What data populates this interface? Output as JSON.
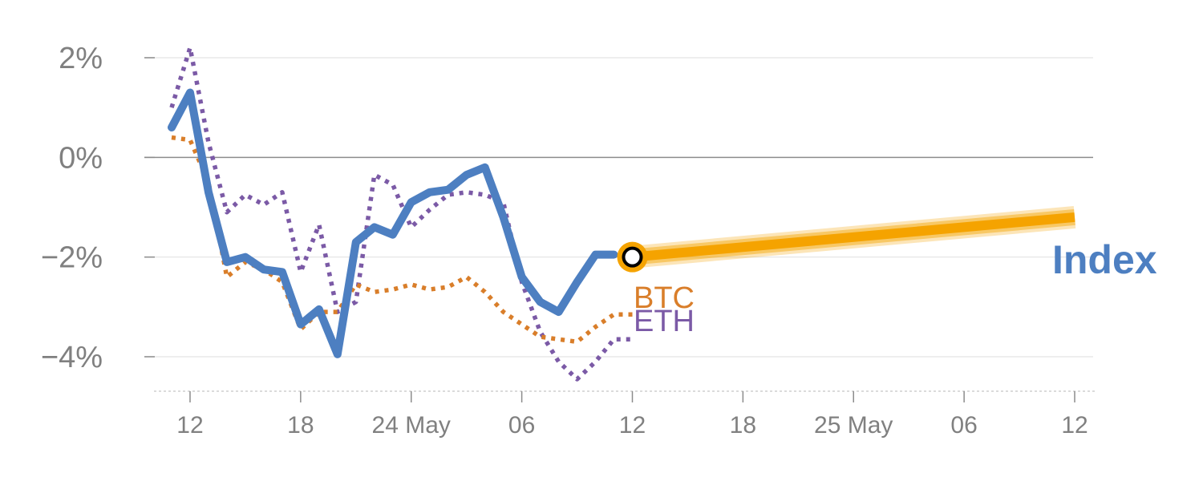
{
  "chart_data": {
    "type": "line",
    "y_unit": "%",
    "ylim": [
      -4.7,
      2.4
    ],
    "y_ticks": [
      {
        "value": 2,
        "label": "2%"
      },
      {
        "value": 0,
        "label": "0%"
      },
      {
        "value": -2,
        "label": "−2%"
      },
      {
        "value": -4,
        "label": "−4%"
      }
    ],
    "x_ticks": [
      {
        "x": 1,
        "label": "12"
      },
      {
        "x": 7,
        "label": "18"
      },
      {
        "x": 13,
        "label": "24 May"
      },
      {
        "x": 19,
        "label": "06"
      },
      {
        "x": 25,
        "label": "12"
      },
      {
        "x": 31,
        "label": "18"
      },
      {
        "x": 37,
        "label": "25 May"
      },
      {
        "x": 43,
        "label": "06"
      },
      {
        "x": 49,
        "label": "12"
      }
    ],
    "grid": true,
    "series": [
      {
        "name": "ETH",
        "color": "#7b5aa6",
        "style": "dotted",
        "x": [
          0,
          1,
          2,
          3,
          4,
          5,
          6,
          7,
          8,
          9,
          10,
          11,
          12,
          13,
          14,
          15,
          16,
          17,
          18,
          19,
          20,
          21,
          22,
          23,
          24,
          25
        ],
        "y": [
          1.0,
          2.2,
          0.3,
          -1.1,
          -0.75,
          -0.95,
          -0.7,
          -2.3,
          -1.35,
          -3.1,
          -2.9,
          -0.35,
          -0.55,
          -1.4,
          -1.05,
          -0.75,
          -0.7,
          -0.75,
          -0.9,
          -2.5,
          -3.5,
          -4.1,
          -4.45,
          -4.1,
          -3.65,
          -3.65
        ]
      },
      {
        "name": "BTC",
        "color": "#d97e2a",
        "style": "dotted",
        "x": [
          0,
          1,
          2,
          3,
          4,
          5,
          6,
          7,
          8,
          9,
          10,
          11,
          12,
          13,
          14,
          15,
          16,
          17,
          18,
          19,
          20,
          21,
          22,
          23,
          24,
          25
        ],
        "y": [
          0.4,
          0.35,
          -0.5,
          -2.4,
          -2.1,
          -2.25,
          -2.5,
          -3.45,
          -3.1,
          -3.1,
          -2.55,
          -2.7,
          -2.65,
          -2.55,
          -2.65,
          -2.6,
          -2.4,
          -2.7,
          -3.1,
          -3.35,
          -3.6,
          -3.65,
          -3.7,
          -3.4,
          -3.15,
          -3.15
        ]
      },
      {
        "name": "Index",
        "color": "#4d7fc1",
        "style": "solid",
        "x": [
          0,
          1,
          2,
          3,
          4,
          5,
          6,
          7,
          8,
          9,
          10,
          11,
          12,
          13,
          14,
          15,
          16,
          17,
          18,
          19,
          20,
          21,
          22,
          23,
          24
        ],
        "y": [
          0.6,
          1.3,
          -0.7,
          -2.1,
          -2.0,
          -2.25,
          -2.3,
          -3.35,
          -3.05,
          -3.95,
          -1.7,
          -1.4,
          -1.55,
          -0.9,
          -0.7,
          -0.65,
          -0.35,
          -0.2,
          -1.2,
          -2.4,
          -2.9,
          -3.1,
          -2.5,
          -1.95,
          -1.95
        ]
      }
    ],
    "forecast": {
      "color": "#f5a300",
      "x": [
        25,
        49
      ],
      "y": [
        -2.0,
        -1.2
      ],
      "marker_x": 25,
      "marker_y": -2.0
    },
    "labels": {
      "btc": "BTC",
      "eth": "ETH",
      "index": "Index"
    }
  }
}
